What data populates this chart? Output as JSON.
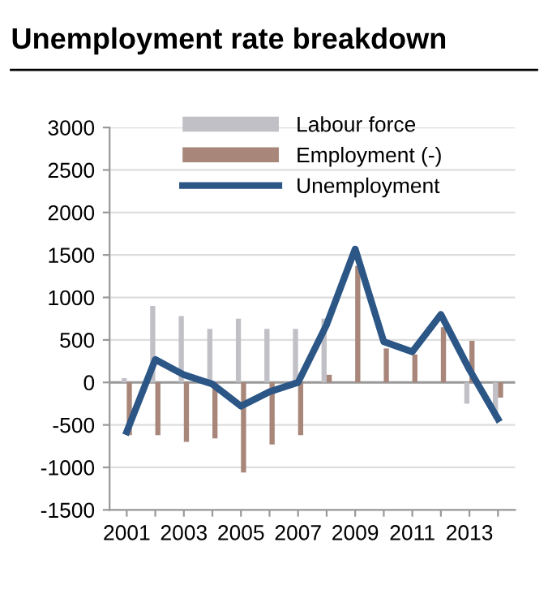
{
  "chart_data": {
    "type": "bar",
    "title": "Unemployment rate breakdown",
    "categories": [
      "2001",
      null,
      "2003",
      null,
      "2005",
      null,
      "2007",
      null,
      "2009",
      null,
      "2011",
      null,
      "2013",
      null
    ],
    "series": [
      {
        "name": "Labour force",
        "color": "#c0c0c6",
        "values": [
          50,
          900,
          780,
          630,
          750,
          630,
          630,
          750,
          null,
          null,
          null,
          null,
          -250,
          -420
        ]
      },
      {
        "name": "Employment (-)",
        "color": "#a8877a",
        "values": [
          -620,
          -620,
          -700,
          -660,
          -1060,
          -730,
          -620,
          90,
          1370,
          400,
          330,
          650,
          490,
          -180
        ]
      },
      {
        "name": "Unemployment",
        "type": "line",
        "color": "#2b5686",
        "values": [
          -580,
          270,
          90,
          -20,
          -280,
          -110,
          0,
          680,
          1570,
          480,
          360,
          800,
          150,
          -430
        ]
      }
    ],
    "ylim": [
      -1500,
      3000
    ],
    "yticks": [
      -1500,
      -1000,
      -500,
      0,
      500,
      1000,
      1500,
      2000,
      2500,
      3000
    ],
    "grid": "y",
    "legend": "top"
  }
}
